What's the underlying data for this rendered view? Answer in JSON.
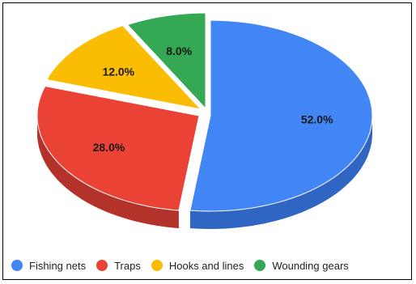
{
  "chart_data": {
    "type": "pie",
    "title": "",
    "categories": [
      "Fishing nets",
      "Traps",
      "Hooks and lines",
      "Wounding gears"
    ],
    "values": [
      52.0,
      28.0,
      12.0,
      8.0
    ],
    "value_labels": [
      "52.0%",
      "28.0%",
      "12.0%",
      "8.0%"
    ],
    "colors": [
      "#4285f4",
      "#ea4335",
      "#fbbc04",
      "#34a853"
    ],
    "side_colors": [
      "#2f66c4",
      "#b3332a",
      "#c99200",
      "#27803f"
    ],
    "style": "3d-exploded",
    "legend_position": "bottom"
  },
  "legend": [
    {
      "label": "Fishing nets",
      "color": "#4285f4"
    },
    {
      "label": "Traps",
      "color": "#ea4335"
    },
    {
      "label": "Hooks and lines",
      "color": "#fbbc04"
    },
    {
      "label": "Wounding gears",
      "color": "#34a853"
    }
  ]
}
